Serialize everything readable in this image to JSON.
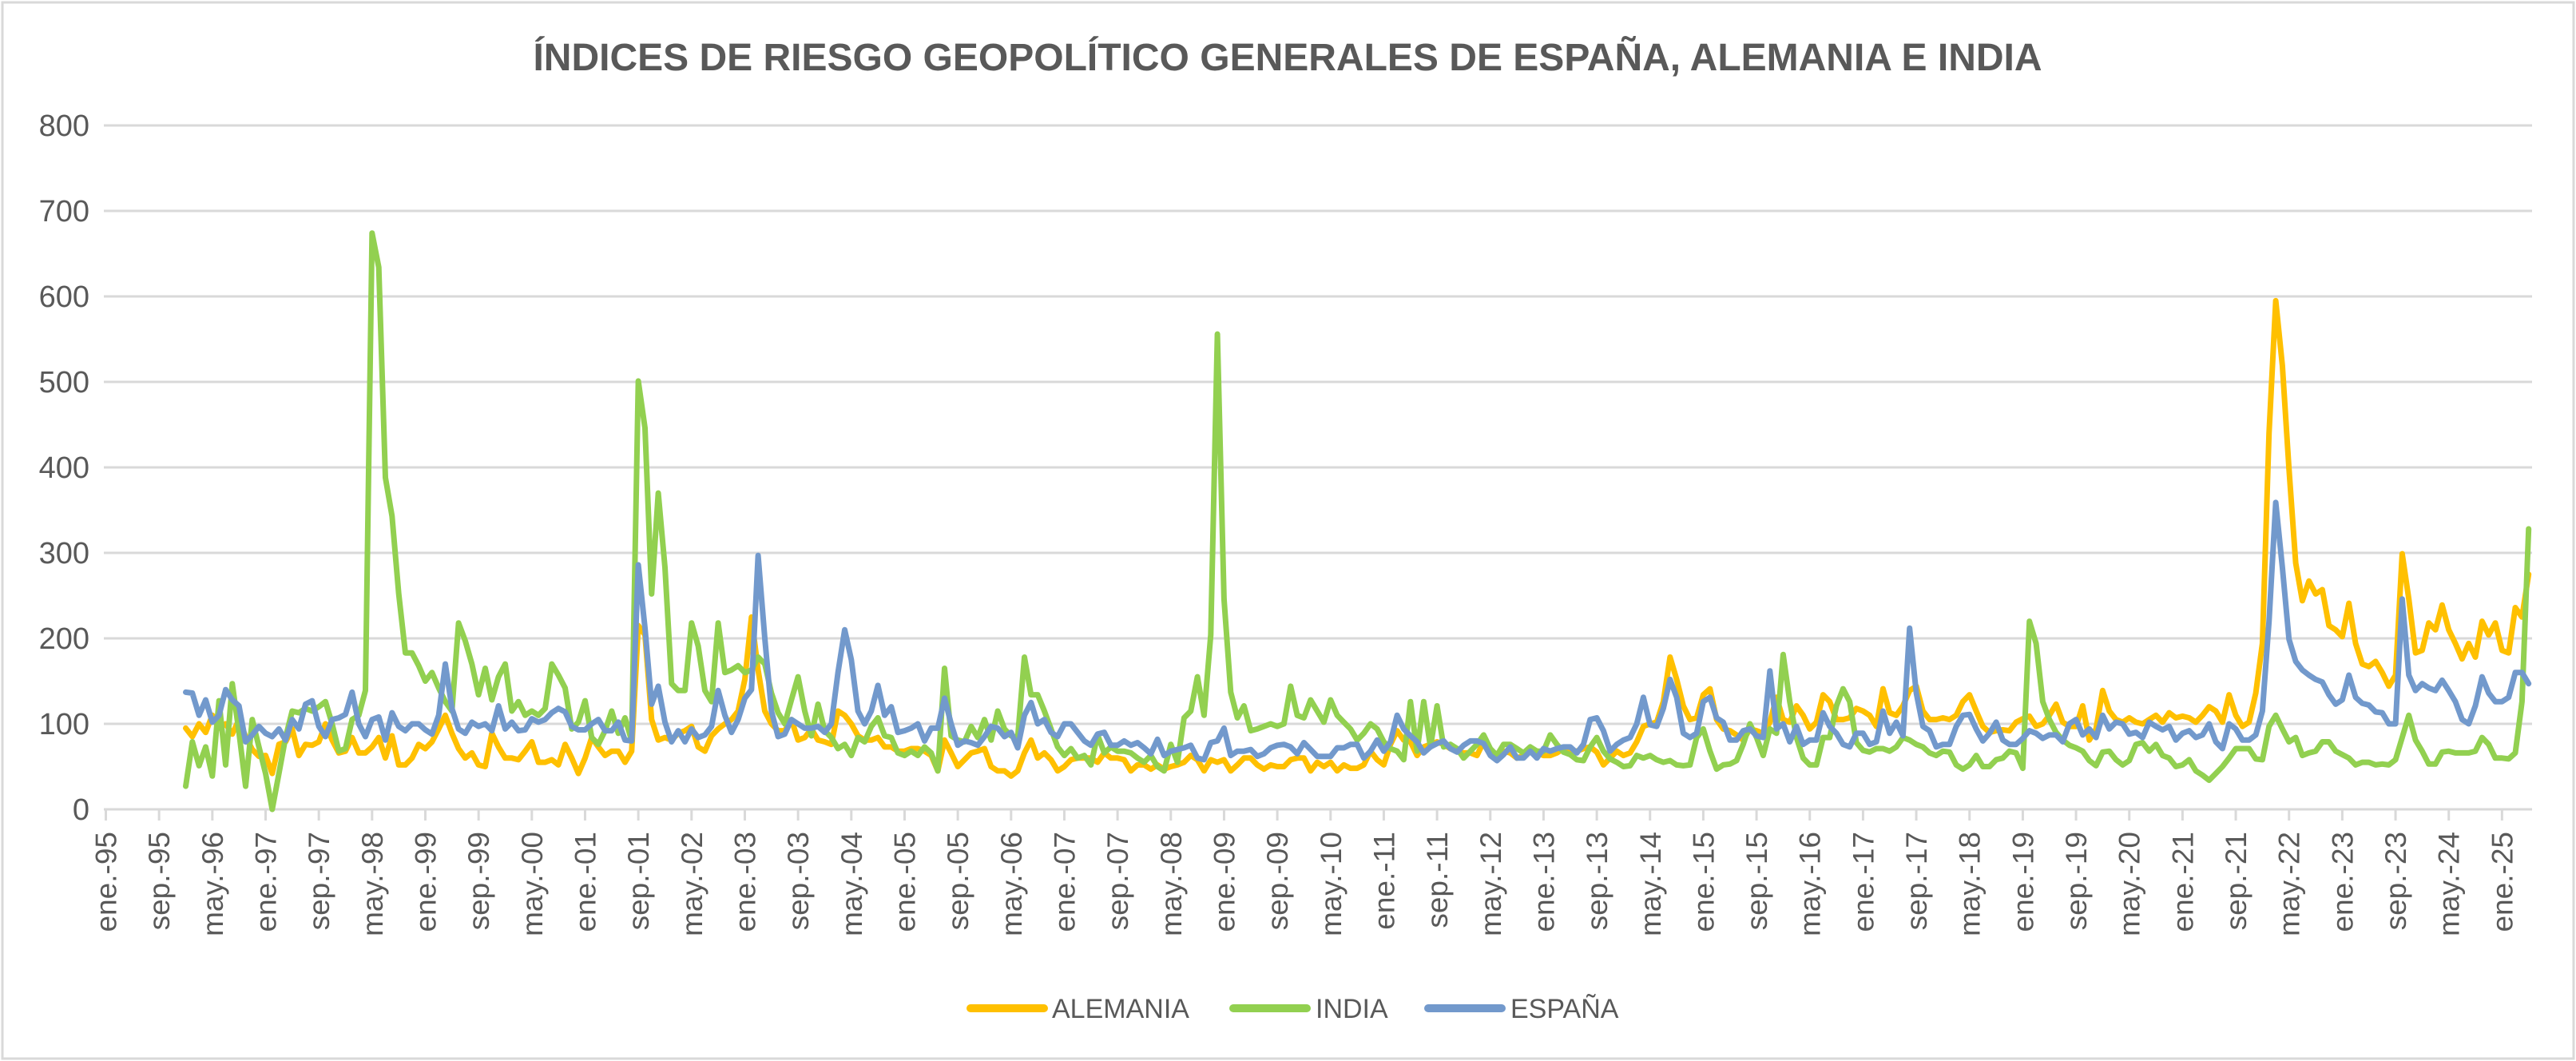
{
  "chart_data": {
    "type": "line",
    "title": "ÍNDICES DE RIESGO GEOPOLÍTICO GENERALES DE ESPAÑA, ALEMANIA E INDIA",
    "xlabel": "",
    "ylabel": "",
    "ylim": [
      0,
      800
    ],
    "y_ticks": [
      "0",
      "100",
      "200",
      "300",
      "400",
      "500",
      "600",
      "700",
      "800"
    ],
    "y_tick_values": [
      0,
      100,
      200,
      300,
      400,
      500,
      600,
      700,
      800
    ],
    "grid": true,
    "legend_position": "bottom",
    "x_frequency": "monthly",
    "x_axis_start": "1995-01",
    "x_start": "1996-01",
    "x_end": "2025-05",
    "x_tick_step_months": 8,
    "x_ticks": [
      "ene.-95",
      "sep.-95",
      "may.-96",
      "ene.-97",
      "sep.-97",
      "may.-98",
      "ene.-99",
      "sep.-99",
      "may.-00",
      "ene.-01",
      "sep.-01",
      "may.-02",
      "ene.-03",
      "sep.-03",
      "may.-04",
      "ene.-05",
      "sep.-05",
      "may.-06",
      "ene.-07",
      "sep.-07",
      "may.-08",
      "ene.-09",
      "sep.-09",
      "may.-10",
      "ene.-11",
      "sep.-11",
      "may.-12",
      "ene.-13",
      "sep.-13",
      "may.-14",
      "ene.-15",
      "sep.-15",
      "may.-16",
      "ene.-17",
      "sep.-17",
      "may.-18",
      "ene.-19",
      "sep.-19",
      "may.-20",
      "ene.-21",
      "sep.-21",
      "may.-22",
      "ene.-23",
      "sep.-23",
      "may.-24",
      "ene.-25"
    ],
    "series": [
      {
        "name": "ALEMANIA",
        "color": "#FFC000",
        "values": [
          95,
          85,
          100,
          90,
          110,
          95,
          100,
          88,
          105,
          85,
          70,
          62,
          63,
          42,
          76,
          79,
          94,
          63,
          76,
          75,
          79,
          100,
          81,
          66,
          68,
          84,
          66,
          66,
          73,
          84,
          60,
          86,
          52,
          52,
          60,
          76,
          71,
          79,
          94,
          110,
          89,
          71,
          60,
          66,
          52,
          50,
          89,
          73,
          60,
          60,
          58,
          68,
          79,
          55,
          55,
          58,
          52,
          76,
          60,
          42,
          60,
          84,
          73,
          63,
          68,
          68,
          55,
          68,
          215,
          204,
          105,
          81,
          84,
          81,
          89,
          92,
          97,
          73,
          68,
          86,
          94,
          100,
          105,
          115,
          152,
          225,
          163,
          115,
          100,
          92,
          92,
          105,
          81,
          84,
          94,
          81,
          79,
          76,
          115,
          110,
          100,
          86,
          81,
          81,
          84,
          73,
          73,
          68,
          68,
          71,
          71,
          68,
          63,
          45,
          81,
          66,
          50,
          58,
          66,
          68,
          71,
          50,
          45,
          45,
          39,
          45,
          66,
          81,
          60,
          66,
          58,
          45,
          50,
          58,
          60,
          60,
          60,
          55,
          66,
          60,
          60,
          58,
          45,
          52,
          52,
          47,
          52,
          47,
          50,
          52,
          55,
          63,
          58,
          45,
          58,
          55,
          58,
          45,
          52,
          60,
          60,
          52,
          47,
          52,
          50,
          50,
          58,
          60,
          60,
          45,
          55,
          50,
          55,
          45,
          52,
          48,
          48,
          52,
          68,
          58,
          52,
          76,
          92,
          81,
          79,
          63,
          73,
          76,
          79,
          76,
          71,
          68,
          66,
          66,
          63,
          79,
          68,
          63,
          68,
          66,
          60,
          63,
          68,
          66,
          63,
          63,
          66,
          71,
          69,
          68,
          71,
          73,
          67,
          52,
          60,
          68,
          63,
          66,
          79,
          97,
          100,
          102,
          126,
          178,
          152,
          121,
          105,
          107,
          134,
          141,
          105,
          94,
          92,
          87,
          81,
          94,
          92,
          89,
          102,
          131,
          105,
          102,
          121,
          110,
          94,
          102,
          134,
          126,
          105,
          105,
          107,
          118,
          115,
          110,
          97,
          141,
          113,
          110,
          121,
          139,
          144,
          115,
          105,
          105,
          107,
          105,
          110,
          126,
          134,
          115,
          97,
          90,
          92,
          93,
          92,
          102,
          106,
          109,
          97,
          100,
          110,
          123,
          102,
          97,
          97,
          121,
          81,
          94,
          139,
          115,
          105,
          102,
          107,
          102,
          100,
          105,
          110,
          102,
          113,
          107,
          109,
          107,
          102,
          110,
          120,
          115,
          102,
          134,
          110,
          97,
          102,
          136,
          194,
          440,
          595,
          519,
          398,
          288,
          244,
          267,
          252,
          257,
          215,
          210,
          202,
          241,
          194,
          170,
          167,
          173,
          160,
          144,
          157,
          299,
          246,
          183,
          186,
          218,
          210,
          239,
          210,
          194,
          176,
          194,
          178,
          220,
          204,
          218,
          186,
          183,
          236,
          225,
          275
        ]
      },
      {
        "name": "INDIA",
        "color": "#92D050",
        "values": [
          27,
          79,
          51,
          73,
          39,
          127,
          52,
          147,
          90,
          27,
          105,
          73,
          42,
          0,
          42,
          84,
          115,
          113,
          118,
          115,
          120,
          126,
          100,
          68,
          71,
          105,
          110,
          139,
          674,
          634,
          388,
          343,
          252,
          183,
          183,
          168,
          150,
          160,
          142,
          126,
          115,
          218,
          197,
          170,
          134,
          165,
          128,
          155,
          170,
          115,
          126,
          110,
          115,
          110,
          118,
          170,
          157,
          142,
          94,
          102,
          127,
          84,
          76,
          92,
          115,
          89,
          107,
          80,
          501,
          446,
          252,
          370,
          283,
          147,
          139,
          139,
          218,
          191,
          139,
          126,
          218,
          160,
          163,
          168,
          160,
          163,
          178,
          170,
          136,
          113,
          100,
          128,
          155,
          115,
          86,
          123,
          92,
          84,
          71,
          76,
          63,
          84,
          79,
          97,
          107,
          86,
          84,
          66,
          63,
          68,
          63,
          73,
          66,
          45,
          165,
          86,
          81,
          79,
          97,
          84,
          105,
          81,
          115,
          94,
          86,
          84,
          178,
          134,
          134,
          115,
          94,
          73,
          63,
          71,
          60,
          63,
          52,
          87,
          66,
          73,
          68,
          68,
          66,
          60,
          55,
          63,
          50,
          45,
          76,
          55,
          107,
          115,
          155,
          110,
          204,
          556,
          246,
          137,
          107,
          121,
          92,
          94,
          97,
          100,
          97,
          100,
          144,
          110,
          107,
          128,
          115,
          102,
          128,
          110,
          102,
          94,
          81,
          89,
          100,
          94,
          79,
          71,
          68,
          58,
          126,
          68,
          126,
          73,
          121,
          73,
          76,
          71,
          60,
          68,
          76,
          87,
          71,
          63,
          76,
          76,
          71,
          66,
          73,
          68,
          68,
          87,
          76,
          67,
          64,
          58,
          57,
          73,
          84,
          68,
          59,
          55,
          50,
          51,
          63,
          60,
          63,
          58,
          55,
          57,
          52,
          51,
          52,
          84,
          94,
          68,
          47,
          52,
          53,
          57,
          76,
          100,
          84,
          63,
          94,
          89,
          181,
          126,
          84,
          60,
          52,
          52,
          84,
          84,
          121,
          141,
          126,
          78,
          69,
          67,
          71,
          71,
          68,
          73,
          84,
          81,
          76,
          73,
          66,
          63,
          68,
          67,
          52,
          47,
          52,
          63,
          50,
          50,
          58,
          60,
          68,
          66,
          48,
          220,
          194,
          126,
          105,
          90,
          81,
          75,
          72,
          68,
          57,
          51,
          67,
          68,
          58,
          52,
          57,
          76,
          78,
          68,
          76,
          63,
          60,
          50,
          52,
          58,
          45,
          40,
          34,
          42,
          50,
          60,
          71,
          71,
          71,
          59,
          58,
          97,
          110,
          94,
          79,
          84,
          63,
          66,
          68,
          79,
          79,
          68,
          64,
          60,
          52,
          55,
          55,
          52,
          53,
          52,
          58,
          84,
          110,
          81,
          68,
          53,
          53,
          67,
          68,
          66,
          66,
          66,
          68,
          84,
          76,
          60,
          60,
          59,
          66,
          126,
          328
        ]
      },
      {
        "name": "ESPAÑA",
        "color": "#7299CC",
        "values": [
          137,
          136,
          110,
          128,
          102,
          110,
          140,
          128,
          121,
          79,
          87,
          97,
          89,
          85,
          94,
          81,
          105,
          94,
          123,
          127,
          97,
          85,
          105,
          107,
          111,
          137,
          100,
          85,
          105,
          108,
          81,
          113,
          97,
          92,
          100,
          100,
          93,
          88,
          110,
          170,
          118,
          94,
          89,
          102,
          97,
          100,
          92,
          121,
          94,
          102,
          92,
          93,
          106,
          102,
          105,
          113,
          118,
          114,
          97,
          93,
          93,
          100,
          105,
          92,
          92,
          102,
          81,
          80,
          286,
          212,
          123,
          144,
          102,
          79,
          92,
          79,
          94,
          84,
          87,
          97,
          139,
          110,
          90,
          105,
          130,
          140,
          297,
          200,
          115,
          85,
          88,
          105,
          100,
          95,
          95,
          97,
          90,
          100,
          160,
          210,
          175,
          115,
          100,
          115,
          145,
          110,
          120,
          90,
          92,
          95,
          100,
          80,
          95,
          95,
          130,
          100,
          75,
          80,
          78,
          75,
          85,
          97,
          95,
          85,
          90,
          72,
          110,
          125,
          100,
          105,
          90,
          85,
          100,
          100,
          90,
          80,
          75,
          88,
          90,
          75,
          75,
          80,
          75,
          78,
          72,
          65,
          82,
          63,
          68,
          70,
          72,
          75,
          60,
          58,
          78,
          80,
          95,
          63,
          68,
          68,
          70,
          62,
          65,
          72,
          75,
          76,
          73,
          65,
          78,
          70,
          62,
          62,
          62,
          72,
          72,
          76,
          76,
          60,
          68,
          81,
          68,
          79,
          110,
          94,
          86,
          79,
          66,
          73,
          77,
          80,
          71,
          67,
          75,
          80,
          80,
          77,
          63,
          57,
          64,
          73,
          60,
          60,
          68,
          60,
          71,
          68,
          71,
          73,
          73,
          66,
          76,
          105,
          107,
          92,
          68,
          76,
          81,
          84,
          100,
          131,
          99,
          97,
          118,
          152,
          131,
          89,
          84,
          89,
          126,
          131,
          107,
          102,
          81,
          81,
          92,
          94,
          86,
          84,
          162,
          94,
          100,
          79,
          97,
          76,
          81,
          81,
          113,
          97,
          89,
          76,
          73,
          89,
          89,
          76,
          79,
          115,
          89,
          102,
          86,
          212,
          136,
          97,
          92,
          73,
          76,
          76,
          97,
          110,
          111,
          94,
          80,
          89,
          102,
          81,
          76,
          76,
          83,
          92,
          89,
          83,
          87,
          87,
          79,
          100,
          105,
          87,
          94,
          84,
          110,
          94,
          102,
          100,
          88,
          90,
          84,
          102,
          97,
          93,
          97,
          81,
          89,
          92,
          84,
          87,
          100,
          79,
          71,
          100,
          94,
          81,
          81,
          87,
          115,
          220,
          359,
          283,
          199,
          173,
          163,
          157,
          152,
          149,
          134,
          123,
          128,
          157,
          131,
          124,
          122,
          114,
          113,
          100,
          100,
          246,
          157,
          139,
          147,
          142,
          139,
          151,
          139,
          126,
          105,
          100,
          121,
          155,
          136,
          126,
          126,
          131,
          160,
          160,
          147
        ]
      }
    ]
  }
}
